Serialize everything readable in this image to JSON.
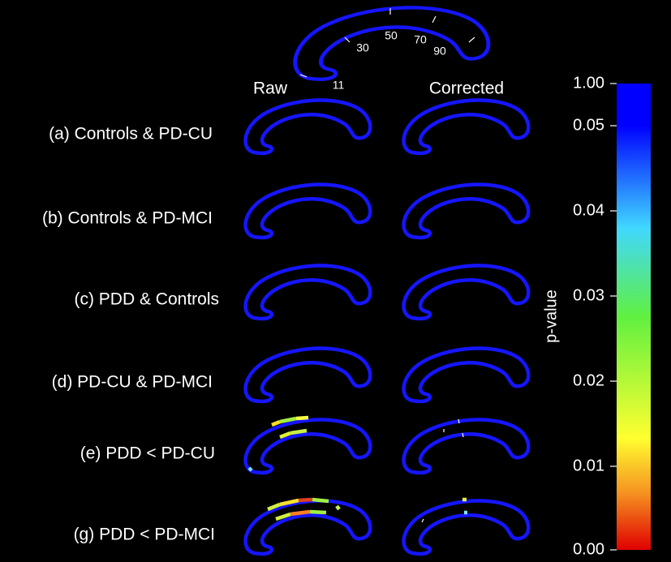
{
  "diagram": {
    "template_labels": [
      "11",
      "30",
      "50",
      "70",
      "90"
    ],
    "columns": [
      "Raw",
      "Corrected"
    ],
    "rows": [
      "(a) Controls & PD-CU",
      "(b) Controls & PD-MCI",
      "(c) PDD & Controls",
      "(d) PD-CU & PD-MCI",
      "(e) PDD < PD-CU",
      "(g) PDD < PD-MCI"
    ],
    "colorbar": {
      "label": "p-value",
      "ticks": [
        "1.00",
        "0.05",
        "0.04",
        "0.03",
        "0.02",
        "0.01",
        "0.00"
      ]
    }
  }
}
